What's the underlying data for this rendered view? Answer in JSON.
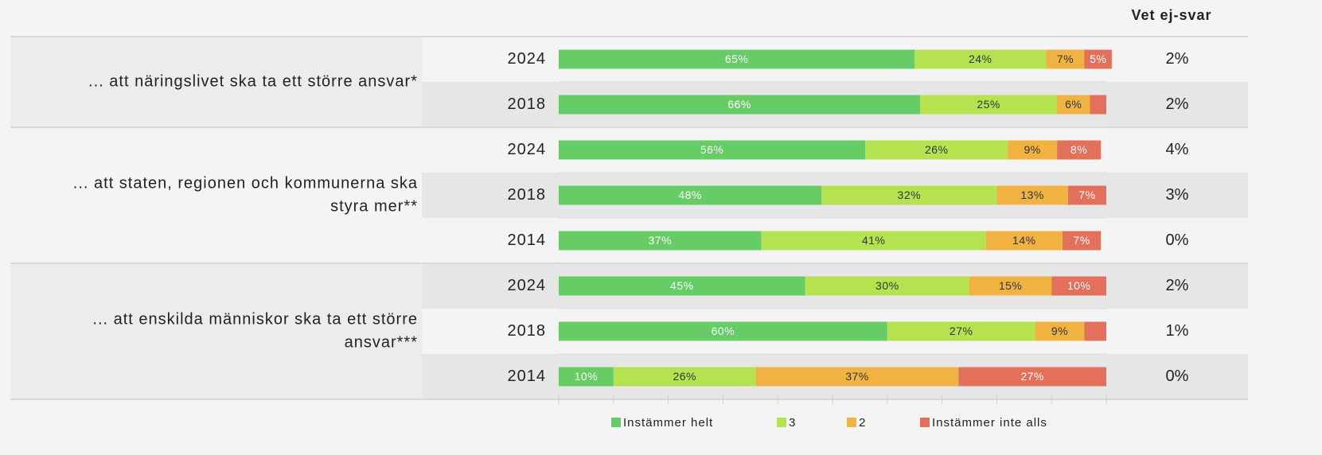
{
  "chart_data": {
    "type": "bar",
    "orientation": "horizontal",
    "stacked": true,
    "groups": [
      {
        "label_lines": [
          "... att näringslivet ska ta ett större ansvar*"
        ],
        "categories": [
          "2024",
          "2018"
        ]
      },
      {
        "label_lines": [
          "... att staten, regionen och kommunerna ska",
          "styra mer**"
        ],
        "categories": [
          "2024",
          "2018",
          "2014"
        ]
      },
      {
        "label_lines": [
          "... att enskilda människor ska ta ett större",
          "ansvar***"
        ],
        "categories": [
          "2024",
          "2018",
          "2014"
        ]
      }
    ],
    "series": [
      {
        "name": "Instämmer helt",
        "color": "#66cc66",
        "label_color": "#ffffff",
        "values": [
          65,
          66,
          56,
          48,
          37,
          45,
          60,
          10
        ],
        "value_labels": [
          "65%",
          "66%",
          "56%",
          "48%",
          "37%",
          "45%",
          "60%",
          "10%"
        ]
      },
      {
        "name": "3",
        "color": "#b5e34f",
        "label_color": "#333333",
        "values": [
          24,
          25,
          26,
          32,
          41,
          30,
          27,
          26
        ],
        "value_labels": [
          "24%",
          "25%",
          "26%",
          "32%",
          "41%",
          "30%",
          "27%",
          "26%"
        ]
      },
      {
        "name": "2",
        "color": "#f0b342",
        "label_color": "#333333",
        "values": [
          7,
          6,
          9,
          13,
          14,
          15,
          9,
          37
        ],
        "value_labels": [
          "7%",
          "6%",
          "9%",
          "13%",
          "14%",
          "15%",
          "9%",
          "37%"
        ]
      },
      {
        "name": "Instämmer inte alls",
        "color": "#e2705a",
        "label_color": "#ffffff",
        "values": [
          5,
          3,
          8,
          7,
          7,
          10,
          4,
          27
        ],
        "value_labels": [
          "5%",
          null,
          "8%",
          "7%",
          "7%",
          "10%",
          null,
          "27%"
        ]
      }
    ],
    "xlim": [
      0,
      100
    ],
    "xticks": [
      0,
      10,
      20,
      30,
      40,
      50,
      60,
      70,
      80,
      90,
      100
    ],
    "extra_column": {
      "title": "Vet ej-svar",
      "values": [
        2,
        2,
        4,
        3,
        0,
        2,
        1,
        0
      ],
      "value_labels": [
        "2%",
        "2%",
        "4%",
        "3%",
        "0%",
        "2%",
        "1%",
        "0%"
      ]
    }
  }
}
